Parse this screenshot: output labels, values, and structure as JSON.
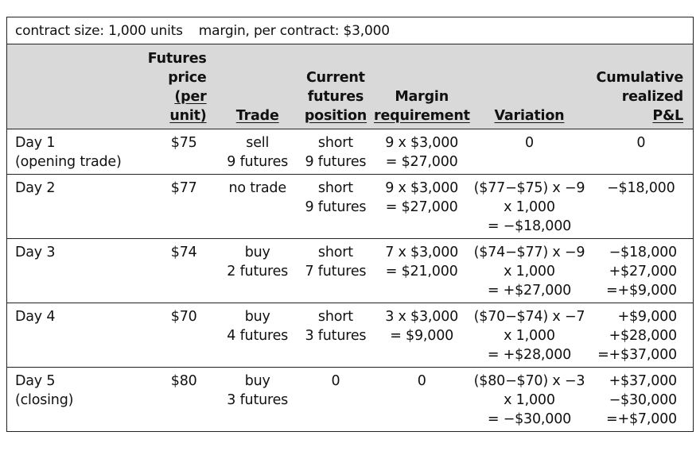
{
  "caption": {
    "contract_size": "contract size: 1,000 units",
    "margin_per_contract": "margin, per contract: $3,000"
  },
  "headers": {
    "futures_price": [
      "Futures",
      "price",
      "(per unit)"
    ],
    "trade": [
      "Trade"
    ],
    "current_position": [
      "Current",
      "futures",
      "position"
    ],
    "margin_requirement": [
      "Margin",
      "requirement"
    ],
    "variation": [
      "Variation"
    ],
    "cumulative_pnl": [
      "Cumulative",
      "realized",
      "P&L"
    ]
  },
  "rows": [
    {
      "day": [
        "Day 1",
        "(opening trade)"
      ],
      "price": "$75",
      "trade": [
        "sell",
        "9 futures"
      ],
      "position": [
        "short",
        "9 futures"
      ],
      "margin": [
        "9 x $3,000",
        "= $27,000"
      ],
      "variation": [
        "0"
      ],
      "pnl": [
        "0"
      ]
    },
    {
      "day": [
        "Day 2"
      ],
      "price": "$77",
      "trade": [
        "no trade"
      ],
      "position": [
        "short",
        "9 futures"
      ],
      "margin": [
        "9 x $3,000",
        "= $27,000"
      ],
      "variation": [
        "($77−$75) x −9",
        "x 1,000",
        "= −$18,000"
      ],
      "pnl": [
        "−$18,000"
      ]
    },
    {
      "day": [
        "Day 3"
      ],
      "price": "$74",
      "trade": [
        "buy",
        "2 futures"
      ],
      "position": [
        "short",
        "7 futures"
      ],
      "margin": [
        "7 x $3,000",
        "= $21,000"
      ],
      "variation": [
        "($74−$77) x −9",
        "x 1,000",
        "= +$27,000"
      ],
      "pnl": [
        "−$18,000",
        "+$27,000",
        "=+$9,000"
      ]
    },
    {
      "day": [
        "Day 4"
      ],
      "price": "$70",
      "trade": [
        "buy",
        "4 futures"
      ],
      "position": [
        "short",
        "3 futures"
      ],
      "margin": [
        "3 x $3,000",
        "= $9,000"
      ],
      "variation": [
        "($70−$74) x −7",
        "x 1,000",
        "= +$28,000"
      ],
      "pnl": [
        "+$9,000",
        "+$28,000",
        "=+$37,000"
      ]
    },
    {
      "day": [
        "Day 5",
        "(closing)"
      ],
      "price": "$80",
      "trade": [
        "buy",
        "3 futures"
      ],
      "position": [
        "0"
      ],
      "margin": [
        "0"
      ],
      "variation": [
        "($80−$70) x −3",
        "x 1,000",
        "= −$30,000"
      ],
      "pnl": [
        "+$37,000",
        "−$30,000",
        "=+$7,000"
      ]
    }
  ]
}
